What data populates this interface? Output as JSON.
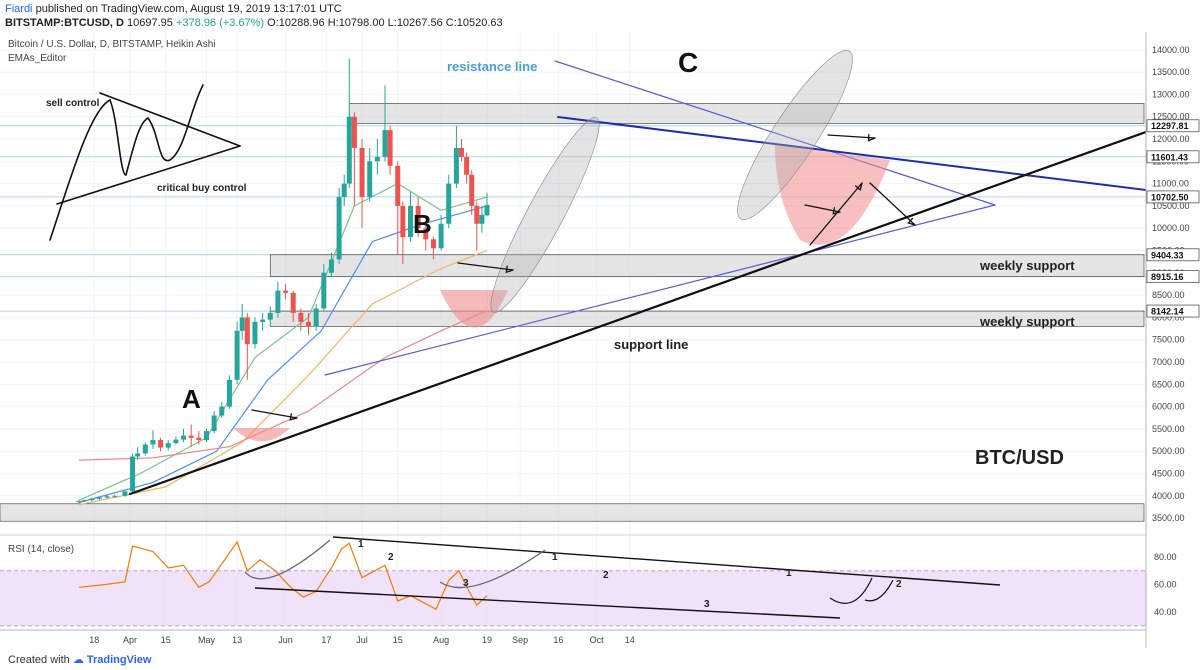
{
  "header": {
    "author": "Fiardi",
    "published": "published on TradingView.com, August 19, 2019 13:17:01 UTC",
    "symbol": "BITSTAMP:BTCUSD, D",
    "price": "10697.95",
    "change": "+378.96 (+3.67%)",
    "o": "O:10288.96",
    "h": "H:10798.00",
    "l": "L:10267.56",
    "c": "C:10520.63"
  },
  "legend": {
    "title": "Bitcoin / U.S. Dollar, D, BITSTAMP, Heikin Ashi",
    "indicator": "EMAs_Editor"
  },
  "annotations": {
    "sell_control": "sell control",
    "critical_buy": "critical buy control",
    "resistance": "resistance line",
    "support": "support line",
    "weekly1": "weekly support",
    "weekly2": "weekly support",
    "pair": "BTC/USD",
    "A": "A",
    "B": "B",
    "C": "C"
  },
  "rsi": {
    "label": "RSI (14, close)",
    "count_labels": [
      "1",
      "2",
      "3",
      "1",
      "2",
      "3",
      "1",
      "2"
    ]
  },
  "footer": {
    "created": "Created with",
    "brand": "TradingView"
  },
  "colors": {
    "up": "#26a69a",
    "down": "#ef5350",
    "rsi": "#f57c00",
    "rsi_band": "#e9d5f5",
    "zone": "#cfcfcf",
    "resistance_text": "#4a9fd8"
  },
  "chart_data": {
    "type": "candlestick",
    "price_axis": {
      "ticks": [
        3500,
        4000,
        4500,
        5000,
        5500,
        6000,
        6500,
        7000,
        7500,
        8000,
        8500,
        9000,
        9500,
        10000,
        10500,
        11000,
        11500,
        12000,
        12500,
        13000,
        13500,
        14000
      ],
      "tick_labels": [
        "3500.00",
        "4000.00",
        "4500.00",
        "5000.00",
        "5500.00",
        "6000.00",
        "6500.00",
        "7000.00",
        "7500.00",
        "8000.00",
        "8500.00",
        "9000.00",
        "9500.00",
        "10000.00",
        "10500.00",
        "11000.00",
        "11500.00",
        "12000.00",
        "12500.00",
        "13000.00",
        "13500.00",
        "14000.00"
      ],
      "range": [
        3300,
        14400
      ],
      "price_tags": [
        {
          "value": 12297.81,
          "label": "12297.81"
        },
        {
          "value": 11601.43,
          "label": "11601.43"
        },
        {
          "value": 10702.5,
          "label": "10702.50"
        },
        {
          "value": 9404.33,
          "label": "9404.33"
        },
        {
          "value": 8915.16,
          "label": "8915.16"
        },
        {
          "value": 8142.14,
          "label": "8142.14"
        }
      ]
    },
    "rsi_axis": {
      "ticks": [
        40,
        60,
        80
      ],
      "tick_labels": [
        "40.00",
        "60.00",
        "80.00"
      ],
      "band": [
        30,
        70
      ],
      "range": [
        27,
        96
      ]
    },
    "x_labels": [
      "18",
      "Apr",
      "15",
      "May",
      "13",
      "Jun",
      "17",
      "Jul",
      "15",
      "Aug",
      "19",
      "Sep",
      "16",
      "Oct",
      "14"
    ],
    "zones": [
      {
        "low": 12350,
        "high": 12800
      },
      {
        "low": 8915.16,
        "high": 9404.33
      },
      {
        "low": 7800,
        "high": 8142.14
      },
      {
        "low": 3430,
        "high": 3820
      }
    ],
    "candles": [
      {
        "d": "Mar 12",
        "o": 3870,
        "h": 3900,
        "l": 3840,
        "c": 3880
      },
      {
        "d": "Mar 14",
        "o": 3880,
        "h": 3920,
        "l": 3860,
        "c": 3900
      },
      {
        "d": "Mar 17",
        "o": 3900,
        "h": 3950,
        "l": 3880,
        "c": 3930
      },
      {
        "d": "Mar 20",
        "o": 3930,
        "h": 3980,
        "l": 3900,
        "c": 3960
      },
      {
        "d": "Mar 23",
        "o": 3960,
        "h": 4010,
        "l": 3930,
        "c": 3990
      },
      {
        "d": "Mar 26",
        "o": 3990,
        "h": 4030,
        "l": 3950,
        "c": 4000
      },
      {
        "d": "Mar 30",
        "o": 4000,
        "h": 4120,
        "l": 3980,
        "c": 4100
      },
      {
        "d": "Apr 02",
        "o": 4100,
        "h": 4950,
        "l": 4080,
        "c": 4880
      },
      {
        "d": "Apr 04",
        "o": 4880,
        "h": 5090,
        "l": 4800,
        "c": 4950
      },
      {
        "d": "Apr 07",
        "o": 4950,
        "h": 5200,
        "l": 4900,
        "c": 5150
      },
      {
        "d": "Apr 10",
        "o": 5150,
        "h": 5470,
        "l": 5050,
        "c": 5250
      },
      {
        "d": "Apr 13",
        "o": 5250,
        "h": 5300,
        "l": 5000,
        "c": 5080
      },
      {
        "d": "Apr 16",
        "o": 5080,
        "h": 5250,
        "l": 5020,
        "c": 5180
      },
      {
        "d": "Apr 19",
        "o": 5180,
        "h": 5330,
        "l": 5150,
        "c": 5260
      },
      {
        "d": "Apr 22",
        "o": 5260,
        "h": 5500,
        "l": 5200,
        "c": 5350
      },
      {
        "d": "Apr 25",
        "o": 5350,
        "h": 5600,
        "l": 5100,
        "c": 5300
      },
      {
        "d": "Apr 28",
        "o": 5300,
        "h": 5450,
        "l": 5150,
        "c": 5250
      },
      {
        "d": "May 01",
        "o": 5250,
        "h": 5500,
        "l": 5200,
        "c": 5450
      },
      {
        "d": "May 04",
        "o": 5450,
        "h": 5900,
        "l": 5400,
        "c": 5800
      },
      {
        "d": "May 07",
        "o": 5800,
        "h": 6100,
        "l": 5750,
        "c": 6000
      },
      {
        "d": "May 10",
        "o": 6000,
        "h": 6700,
        "l": 5950,
        "c": 6600
      },
      {
        "d": "May 13",
        "o": 6600,
        "h": 7900,
        "l": 6500,
        "c": 7700
      },
      {
        "d": "May 15",
        "o": 7700,
        "h": 8300,
        "l": 7500,
        "c": 8000
      },
      {
        "d": "May 17",
        "o": 8000,
        "h": 8100,
        "l": 6600,
        "c": 7400
      },
      {
        "d": "May 20",
        "o": 7400,
        "h": 8000,
        "l": 7300,
        "c": 7900
      },
      {
        "d": "May 23",
        "o": 7900,
        "h": 8100,
        "l": 7700,
        "c": 7950
      },
      {
        "d": "May 26",
        "o": 7950,
        "h": 8250,
        "l": 7800,
        "c": 8100
      },
      {
        "d": "May 29",
        "o": 8100,
        "h": 8800,
        "l": 8000,
        "c": 8600
      },
      {
        "d": "Jun 01",
        "o": 8600,
        "h": 8750,
        "l": 8400,
        "c": 8550
      },
      {
        "d": "Jun 04",
        "o": 8550,
        "h": 8600,
        "l": 7900,
        "c": 8100
      },
      {
        "d": "Jun 07",
        "o": 8100,
        "h": 8200,
        "l": 7700,
        "c": 7900
      },
      {
        "d": "Jun 10",
        "o": 7900,
        "h": 8100,
        "l": 7600,
        "c": 7800
      },
      {
        "d": "Jun 13",
        "o": 7800,
        "h": 8300,
        "l": 7700,
        "c": 8200
      },
      {
        "d": "Jun 16",
        "o": 8200,
        "h": 9200,
        "l": 8150,
        "c": 9000
      },
      {
        "d": "Jun 19",
        "o": 9000,
        "h": 9450,
        "l": 8900,
        "c": 9300
      },
      {
        "d": "Jun 22",
        "o": 9300,
        "h": 10900,
        "l": 9200,
        "c": 10700
      },
      {
        "d": "Jun 24",
        "o": 10700,
        "h": 11200,
        "l": 10500,
        "c": 11000
      },
      {
        "d": "Jun 26",
        "o": 11000,
        "h": 13800,
        "l": 10900,
        "c": 12500
      },
      {
        "d": "Jun 28",
        "o": 12500,
        "h": 12600,
        "l": 10500,
        "c": 11800
      },
      {
        "d": "Jul 01",
        "o": 11800,
        "h": 12000,
        "l": 10000,
        "c": 10700
      },
      {
        "d": "Jul 04",
        "o": 10700,
        "h": 11800,
        "l": 10600,
        "c": 11500
      },
      {
        "d": "Jul 07",
        "o": 11500,
        "h": 12000,
        "l": 11200,
        "c": 11600
      },
      {
        "d": "Jul 10",
        "o": 11600,
        "h": 13200,
        "l": 11500,
        "c": 12200
      },
      {
        "d": "Jul 12",
        "o": 12200,
        "h": 12300,
        "l": 11200,
        "c": 11400
      },
      {
        "d": "Jul 15",
        "o": 11400,
        "h": 11500,
        "l": 9400,
        "c": 10500
      },
      {
        "d": "Jul 17",
        "o": 10500,
        "h": 10600,
        "l": 9200,
        "c": 9800
      },
      {
        "d": "Jul 20",
        "o": 9800,
        "h": 10800,
        "l": 9700,
        "c": 10500
      },
      {
        "d": "Jul 23",
        "o": 10500,
        "h": 10700,
        "l": 9800,
        "c": 10000
      },
      {
        "d": "Jul 26",
        "o": 10000,
        "h": 10100,
        "l": 9500,
        "c": 9750
      },
      {
        "d": "Jul 29",
        "o": 9750,
        "h": 9800,
        "l": 9300,
        "c": 9550
      },
      {
        "d": "Aug 01",
        "o": 9550,
        "h": 10300,
        "l": 9500,
        "c": 10100
      },
      {
        "d": "Aug 04",
        "o": 10100,
        "h": 11200,
        "l": 10000,
        "c": 11000
      },
      {
        "d": "Aug 07",
        "o": 11000,
        "h": 12300,
        "l": 10900,
        "c": 11800
      },
      {
        "d": "Aug 09",
        "o": 11800,
        "h": 12000,
        "l": 11500,
        "c": 11600
      },
      {
        "d": "Aug 11",
        "o": 11600,
        "h": 11700,
        "l": 11000,
        "c": 11200
      },
      {
        "d": "Aug 13",
        "o": 11200,
        "h": 11300,
        "l": 10300,
        "c": 10500
      },
      {
        "d": "Aug 15",
        "o": 10500,
        "h": 10600,
        "l": 9500,
        "c": 10100
      },
      {
        "d": "Aug 17",
        "o": 10100,
        "h": 10500,
        "l": 9900,
        "c": 10300
      },
      {
        "d": "Aug 19",
        "o": 10288.96,
        "h": 10798,
        "l": 10267.56,
        "c": 10520.63
      }
    ],
    "rsi_values": [
      {
        "d": "Mar 12",
        "v": 58
      },
      {
        "d": "Mar 22",
        "v": 60
      },
      {
        "d": "Mar 30",
        "v": 62
      },
      {
        "d": "Apr 02",
        "v": 88
      },
      {
        "d": "Apr 10",
        "v": 84
      },
      {
        "d": "Apr 16",
        "v": 72
      },
      {
        "d": "Apr 22",
        "v": 74
      },
      {
        "d": "Apr 28",
        "v": 58
      },
      {
        "d": "May 02",
        "v": 62
      },
      {
        "d": "May 07",
        "v": 75
      },
      {
        "d": "May 13",
        "v": 91
      },
      {
        "d": "May 17",
        "v": 70
      },
      {
        "d": "May 22",
        "v": 78
      },
      {
        "d": "May 28",
        "v": 70
      },
      {
        "d": "Jun 03",
        "v": 58
      },
      {
        "d": "Jun 08",
        "v": 51
      },
      {
        "d": "Jun 13",
        "v": 55
      },
      {
        "d": "Jun 19",
        "v": 72
      },
      {
        "d": "Jun 23",
        "v": 86
      },
      {
        "d": "Jun 26",
        "v": 90
      },
      {
        "d": "Jul 01",
        "v": 65
      },
      {
        "d": "Jul 06",
        "v": 70
      },
      {
        "d": "Jul 10",
        "v": 74
      },
      {
        "d": "Jul 15",
        "v": 48
      },
      {
        "d": "Jul 20",
        "v": 52
      },
      {
        "d": "Jul 26",
        "v": 46
      },
      {
        "d": "Jul 30",
        "v": 42
      },
      {
        "d": "Aug 04",
        "v": 63
      },
      {
        "d": "Aug 08",
        "v": 70
      },
      {
        "d": "Aug 12",
        "v": 55
      },
      {
        "d": "Aug 15",
        "v": 45
      },
      {
        "d": "Aug 19",
        "v": 52
      }
    ],
    "emas": [
      {
        "name": "ema1",
        "color": "#7cc48a",
        "values": [
          {
            "d": "Mar 12",
            "v": 3900
          },
          {
            "d": "Apr 05",
            "v": 4500
          },
          {
            "d": "May 01",
            "v": 5300
          },
          {
            "d": "May 20",
            "v": 7100
          },
          {
            "d": "Jun 10",
            "v": 8000
          },
          {
            "d": "Jun 28",
            "v": 10500
          },
          {
            "d": "Jul 15",
            "v": 11000
          },
          {
            "d": "Aug 01",
            "v": 10400
          },
          {
            "d": "Aug 19",
            "v": 10700
          }
        ]
      },
      {
        "name": "ema2",
        "color": "#4f8ef0",
        "values": [
          {
            "d": "Mar 12",
            "v": 3850
          },
          {
            "d": "Apr 10",
            "v": 4300
          },
          {
            "d": "May 05",
            "v": 5000
          },
          {
            "d": "May 25",
            "v": 6600
          },
          {
            "d": "Jun 15",
            "v": 7700
          },
          {
            "d": "Jul 05",
            "v": 9700
          },
          {
            "d": "Jul 25",
            "v": 10100
          },
          {
            "d": "Aug 19",
            "v": 10500
          }
        ]
      },
      {
        "name": "ema3",
        "color": "#f2b366",
        "values": [
          {
            "d": "Mar 12",
            "v": 3800
          },
          {
            "d": "Apr 15",
            "v": 4200
          },
          {
            "d": "May 15",
            "v": 5200
          },
          {
            "d": "Jun 10",
            "v": 6700
          },
          {
            "d": "Jul 05",
            "v": 8300
          },
          {
            "d": "Aug 01",
            "v": 9100
          },
          {
            "d": "Aug 19",
            "v": 9500
          }
        ]
      },
      {
        "name": "ema4",
        "color": "#e88a8a",
        "values": [
          {
            "d": "Mar 12",
            "v": 4800
          },
          {
            "d": "Apr 10",
            "v": 4850
          },
          {
            "d": "May 10",
            "v": 5100
          },
          {
            "d": "Jun 10",
            "v": 5900
          },
          {
            "d": "Jul 10",
            "v": 7100
          },
          {
            "d": "Aug 01",
            "v": 7700
          },
          {
            "d": "Aug 19",
            "v": 8150
          }
        ]
      }
    ]
  }
}
